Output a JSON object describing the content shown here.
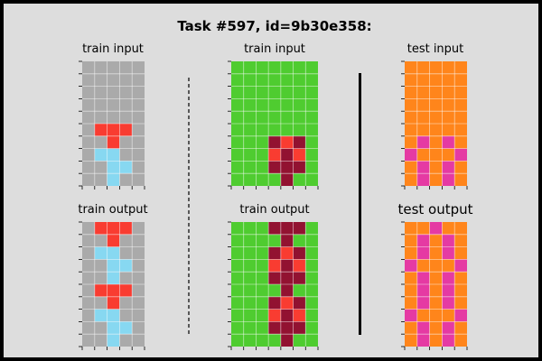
{
  "title": "Task #597, id=9b30e358:",
  "colors": {
    "0": "#000000",
    "1": "#1e93ff",
    "2": "#f93c31",
    "3": "#4fcc30",
    "4": "#ffdc00",
    "5": "#aaaaaa",
    "6": "#e53aa3",
    "7": "#ff851b",
    "8": "#87d8f1",
    "9": "#921231"
  },
  "panels": {
    "train_input_1": {
      "label": "train input",
      "grid": [
        [
          5,
          5,
          5,
          5,
          5
        ],
        [
          5,
          5,
          5,
          5,
          5
        ],
        [
          5,
          5,
          5,
          5,
          5
        ],
        [
          5,
          5,
          5,
          5,
          5
        ],
        [
          5,
          5,
          5,
          5,
          5
        ],
        [
          5,
          2,
          2,
          2,
          5
        ],
        [
          5,
          5,
          2,
          5,
          5
        ],
        [
          5,
          8,
          8,
          5,
          5
        ],
        [
          5,
          5,
          8,
          8,
          5
        ],
        [
          5,
          5,
          8,
          5,
          5
        ]
      ]
    },
    "train_output_1": {
      "label": "train output",
      "grid": [
        [
          5,
          2,
          2,
          2,
          5
        ],
        [
          5,
          5,
          2,
          5,
          5
        ],
        [
          5,
          8,
          8,
          5,
          5
        ],
        [
          5,
          5,
          8,
          8,
          5
        ],
        [
          5,
          5,
          8,
          5,
          5
        ],
        [
          5,
          2,
          2,
          2,
          5
        ],
        [
          5,
          5,
          2,
          5,
          5
        ],
        [
          5,
          8,
          8,
          5,
          5
        ],
        [
          5,
          5,
          8,
          8,
          5
        ],
        [
          5,
          5,
          8,
          5,
          5
        ]
      ]
    },
    "train_input_2": {
      "label": "train input",
      "grid": [
        [
          3,
          3,
          3,
          3,
          3,
          3,
          3
        ],
        [
          3,
          3,
          3,
          3,
          3,
          3,
          3
        ],
        [
          3,
          3,
          3,
          3,
          3,
          3,
          3
        ],
        [
          3,
          3,
          3,
          3,
          3,
          3,
          3
        ],
        [
          3,
          3,
          3,
          3,
          3,
          3,
          3
        ],
        [
          3,
          3,
          3,
          3,
          3,
          3,
          3
        ],
        [
          3,
          3,
          3,
          9,
          2,
          9,
          3
        ],
        [
          3,
          3,
          3,
          2,
          9,
          2,
          3
        ],
        [
          3,
          3,
          3,
          9,
          9,
          9,
          3
        ],
        [
          3,
          3,
          3,
          3,
          9,
          3,
          3
        ]
      ]
    },
    "train_output_2": {
      "label": "train output",
      "grid": [
        [
          3,
          3,
          3,
          9,
          9,
          9,
          3
        ],
        [
          3,
          3,
          3,
          3,
          9,
          3,
          3
        ],
        [
          3,
          3,
          3,
          9,
          2,
          9,
          3
        ],
        [
          3,
          3,
          3,
          2,
          9,
          2,
          3
        ],
        [
          3,
          3,
          3,
          9,
          9,
          9,
          3
        ],
        [
          3,
          3,
          3,
          3,
          9,
          3,
          3
        ],
        [
          3,
          3,
          3,
          9,
          2,
          9,
          3
        ],
        [
          3,
          3,
          3,
          2,
          9,
          2,
          3
        ],
        [
          3,
          3,
          3,
          9,
          9,
          9,
          3
        ],
        [
          3,
          3,
          3,
          3,
          9,
          3,
          3
        ]
      ]
    },
    "test_input": {
      "label": "test input",
      "grid": [
        [
          7,
          7,
          7,
          7,
          7
        ],
        [
          7,
          7,
          7,
          7,
          7
        ],
        [
          7,
          7,
          7,
          7,
          7
        ],
        [
          7,
          7,
          7,
          7,
          7
        ],
        [
          7,
          7,
          7,
          7,
          7
        ],
        [
          7,
          7,
          7,
          7,
          7
        ],
        [
          7,
          6,
          7,
          6,
          7
        ],
        [
          6,
          7,
          7,
          7,
          6
        ],
        [
          7,
          6,
          7,
          6,
          7
        ],
        [
          7,
          6,
          7,
          6,
          7
        ]
      ]
    },
    "test_output": {
      "label": "test output",
      "grid": [
        [
          7,
          7,
          6,
          7,
          7
        ],
        [
          7,
          6,
          7,
          6,
          7
        ],
        [
          7,
          6,
          7,
          6,
          7
        ],
        [
          6,
          7,
          7,
          7,
          6
        ],
        [
          7,
          6,
          7,
          6,
          7
        ],
        [
          7,
          6,
          7,
          6,
          7
        ],
        [
          7,
          6,
          7,
          6,
          7
        ],
        [
          6,
          7,
          7,
          7,
          6
        ],
        [
          7,
          6,
          7,
          6,
          7
        ],
        [
          7,
          6,
          7,
          6,
          7
        ]
      ]
    }
  }
}
